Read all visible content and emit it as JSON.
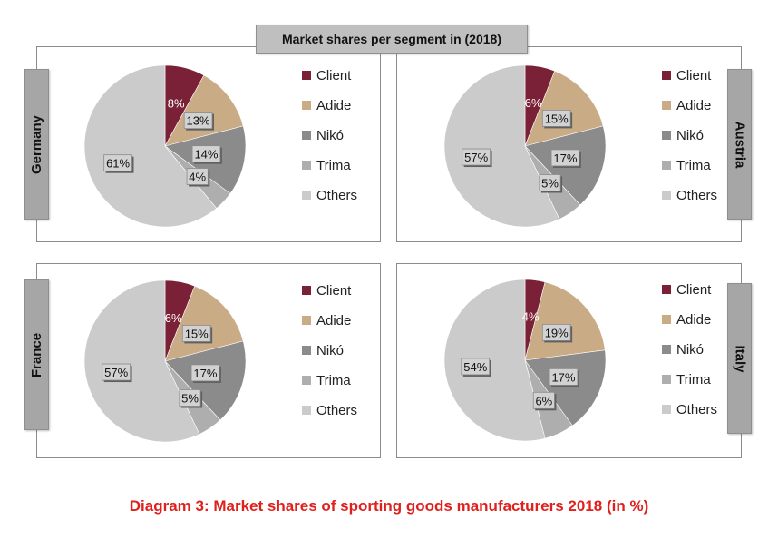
{
  "title": "Market shares per segment in (2018)",
  "caption": "Diagram 3: Market shares of sporting goods manufacturers 2018 (in %)",
  "colors": {
    "Client": "#7b2137",
    "Adide": "#c9ab85",
    "Nikó": "#8b8b8b",
    "Trima": "#aeaeae",
    "Others": "#cbcbcb"
  },
  "chart_data": [
    {
      "type": "pie",
      "country": "Germany",
      "categories": [
        "Client",
        "Adide",
        "Nikó",
        "Trima",
        "Others"
      ],
      "values": [
        8,
        13,
        14,
        4,
        61
      ],
      "labels": [
        "8%",
        "13%",
        "14%",
        "4%",
        "61%"
      ],
      "legend": "right"
    },
    {
      "type": "pie",
      "country": "Austria",
      "categories": [
        "Client",
        "Adide",
        "Nikó",
        "Trima",
        "Others"
      ],
      "values": [
        6,
        15,
        17,
        5,
        57
      ],
      "labels": [
        "6%",
        "15%",
        "17%",
        "5%",
        "57%"
      ],
      "legend": "right"
    },
    {
      "type": "pie",
      "country": "France",
      "categories": [
        "Client",
        "Adide",
        "Nikó",
        "Trima",
        "Others"
      ],
      "values": [
        6,
        15,
        17,
        5,
        57
      ],
      "labels": [
        "6%",
        "15%",
        "17%",
        "5%",
        "57%"
      ],
      "legend": "right"
    },
    {
      "type": "pie",
      "country": "Italy",
      "categories": [
        "Client",
        "Adide",
        "Nikó",
        "Trima",
        "Others"
      ],
      "values": [
        4,
        19,
        17,
        6,
        54
      ],
      "labels": [
        "4%",
        "19%",
        "17%",
        "6%",
        "54%"
      ],
      "legend": "right"
    }
  ]
}
